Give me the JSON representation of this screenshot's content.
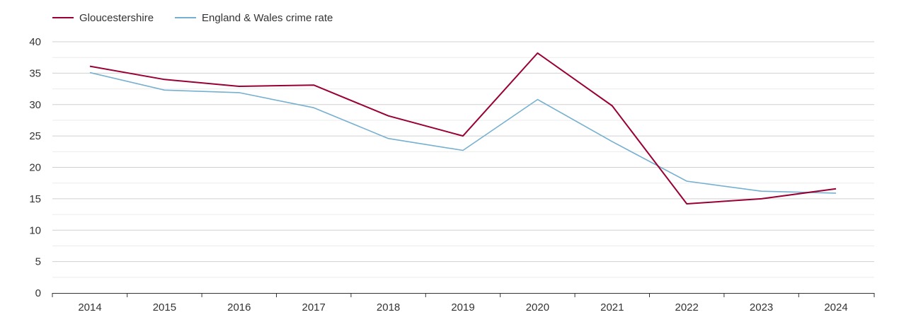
{
  "colors": {
    "gloucestershire": "#990033",
    "england_wales": "#76b0d0",
    "grid_major": "#d0d0d0",
    "grid_minor": "#ebebeb",
    "axis": "#333333",
    "text": "#333333"
  },
  "chart_data": {
    "type": "line",
    "title": "",
    "xlabel": "",
    "ylabel": "",
    "ylim": [
      0,
      40
    ],
    "yticks": [
      "0",
      "5",
      "10",
      "15",
      "20",
      "25",
      "30",
      "35",
      "40"
    ],
    "categories": [
      "2014",
      "2015",
      "2016",
      "2017",
      "2018",
      "2019",
      "2020",
      "2021",
      "2022",
      "2023",
      "2024"
    ],
    "grid": true,
    "legend_position": "top-left",
    "series": [
      {
        "name": "Gloucestershire",
        "values": [
          36.1,
          34.0,
          32.9,
          33.1,
          28.2,
          25.0,
          38.2,
          29.8,
          14.2,
          15.0,
          16.6
        ]
      },
      {
        "name": "England & Wales crime rate",
        "values": [
          35.1,
          32.3,
          31.9,
          29.5,
          24.6,
          22.7,
          30.8,
          24.1,
          17.8,
          16.2,
          15.9
        ]
      }
    ]
  }
}
